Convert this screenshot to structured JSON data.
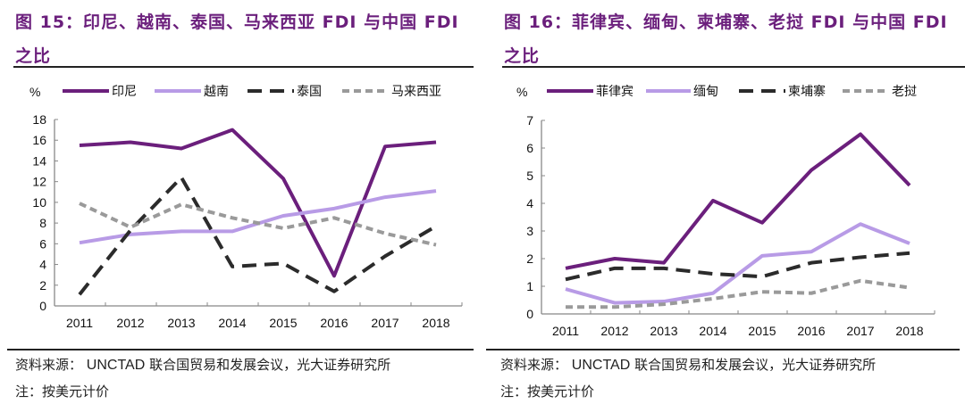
{
  "figures": [
    {
      "title": "图 15：印尼、越南、泰国、马来西亚 FDI 与中国 FDI 之比",
      "source_prefix": "资料来源：",
      "source_org": "UNCTAD",
      "source_rest": "联合国贸易和发展会议，光大证券研究所",
      "note": "注：按美元计价"
    },
    {
      "title": "图 16：菲律宾、缅甸、柬埔寨、老挝 FDI 与中国 FDI 之比",
      "source_prefix": "资料来源：",
      "source_org": "UNCTAD",
      "source_rest": "联合国贸易和发展会议，光大证券研究所",
      "note": "注：按美元计价"
    }
  ],
  "chart_data": [
    {
      "type": "line",
      "title": "图 15：印尼、越南、泰国、马来西亚 FDI 与中国 FDI 之比",
      "ylabel": "%",
      "xlabel": "",
      "categories": [
        "2011",
        "2012",
        "2013",
        "2014",
        "2015",
        "2016",
        "2017",
        "2018"
      ],
      "ylim": [
        0,
        18
      ],
      "yticks": [
        0,
        2,
        4,
        6,
        8,
        10,
        12,
        14,
        16,
        18
      ],
      "grid": false,
      "legend_position": "top",
      "series": [
        {
          "name": "印尼",
          "color": "#6b1f7c",
          "style": "solid",
          "values": [
            15.5,
            15.8,
            15.2,
            17.0,
            12.3,
            2.9,
            15.4,
            15.8
          ]
        },
        {
          "name": "越南",
          "color": "#b89be6",
          "style": "solid",
          "values": [
            6.1,
            6.9,
            7.2,
            7.2,
            8.7,
            9.4,
            10.5,
            11.1
          ]
        },
        {
          "name": "泰国",
          "color": "#2b2b2b",
          "style": "long-dash",
          "values": [
            1.1,
            7.3,
            12.4,
            3.8,
            4.1,
            1.4,
            4.8,
            7.7
          ]
        },
        {
          "name": "马来西亚",
          "color": "#9a9a9a",
          "style": "dash",
          "values": [
            9.9,
            7.6,
            9.8,
            8.5,
            7.5,
            8.5,
            7.0,
            5.9
          ]
        }
      ]
    },
    {
      "type": "line",
      "title": "图 16：菲律宾、缅甸、柬埔寨、老挝 FDI 与中国 FDI 之比",
      "ylabel": "%",
      "xlabel": "",
      "categories": [
        "2011",
        "2012",
        "2013",
        "2014",
        "2015",
        "2016",
        "2017",
        "2018"
      ],
      "ylim": [
        0,
        7
      ],
      "yticks": [
        0,
        1,
        2,
        3,
        4,
        5,
        6,
        7
      ],
      "grid": false,
      "legend_position": "top",
      "series": [
        {
          "name": "菲律宾",
          "color": "#6b1f7c",
          "style": "solid",
          "values": [
            1.65,
            2.0,
            1.85,
            4.1,
            3.3,
            5.2,
            6.5,
            4.65
          ]
        },
        {
          "name": "缅甸",
          "color": "#b89be6",
          "style": "solid",
          "values": [
            0.9,
            0.4,
            0.45,
            0.75,
            2.1,
            2.25,
            3.25,
            2.55
          ]
        },
        {
          "name": "柬埔寨",
          "color": "#2b2b2b",
          "style": "long-dash",
          "values": [
            1.25,
            1.65,
            1.65,
            1.45,
            1.35,
            1.85,
            2.05,
            2.2
          ]
        },
        {
          "name": "老挝",
          "color": "#9a9a9a",
          "style": "dash",
          "values": [
            0.25,
            0.25,
            0.35,
            0.55,
            0.8,
            0.75,
            1.2,
            0.95
          ]
        }
      ]
    }
  ]
}
